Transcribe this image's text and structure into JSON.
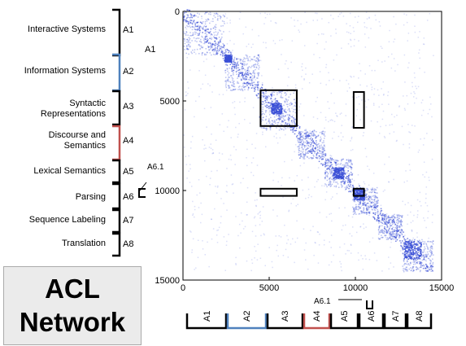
{
  "title": {
    "line1": "ACL",
    "line2": "Network"
  },
  "row_groups": [
    {
      "id": "A1",
      "label": "Interactive Systems",
      "color": "#000000"
    },
    {
      "id": "A2",
      "label": "Information Systems",
      "color": "#4f81bd"
    },
    {
      "id": "A3",
      "label": "Syntactic Representations",
      "color": "#000000"
    },
    {
      "id": "A4",
      "label": "Discourse and Semantics",
      "color": "#c0504d"
    },
    {
      "id": "A5",
      "label": "Lexical Semantics",
      "color": "#000000"
    },
    {
      "id": "A6",
      "label": "Parsing",
      "color": "#000000"
    },
    {
      "id": "A7",
      "label": "Sequence Labeling",
      "color": "#000000"
    },
    {
      "id": "A8",
      "label": "Translation",
      "color": "#000000"
    }
  ],
  "subgroup_label": "A6.1",
  "column_groups": [
    "A1",
    "A2",
    "A3",
    "A4",
    "A5",
    "A6",
    "A7",
    "A8"
  ],
  "axis": {
    "x_ticks": [
      "0",
      "5000",
      "10000",
      "15000"
    ],
    "y_ticks": [
      "0",
      "5000",
      "10000",
      "15000"
    ],
    "range": [
      0,
      15000
    ]
  },
  "matrix": {
    "point_color": "#3a4fd6",
    "highlight_boxes": [
      {
        "x": [
          4500,
          6600
        ],
        "y": [
          4400,
          6400
        ]
      },
      {
        "x": [
          9900,
          10500
        ],
        "y": [
          4500,
          6500
        ]
      },
      {
        "x": [
          4500,
          6600
        ],
        "y": [
          9900,
          10300
        ]
      },
      {
        "x": [
          9900,
          10500
        ],
        "y": [
          9900,
          10300
        ]
      }
    ]
  }
}
